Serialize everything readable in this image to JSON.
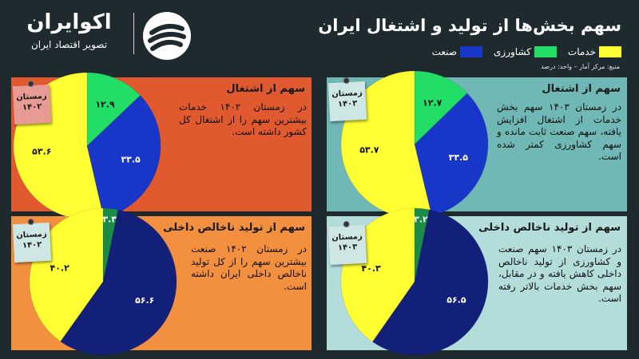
{
  "brand": {
    "name": "اکوایران",
    "tagline": "تصویر اقتصاد ایران"
  },
  "title": "سهم بخش‌ها از تولید و اشتغال ایران",
  "legend": [
    {
      "label": "خدمات",
      "color": "#ffff33"
    },
    {
      "label": "کشاورزی",
      "color": "#22dd66"
    },
    {
      "label": "صنعت",
      "color": "#1836c8"
    }
  ],
  "source": "منبع: مرکز آمار – واحد: درصد",
  "panels": {
    "tl": {
      "title": "سهم از اشتغال",
      "tag_season": "زمستان",
      "tag_year": "۱۴۰۲",
      "text": "در زمستان ۱۴۰۲ خدمات بیشترین سهم را از اشتغال کل کشور داشته است."
    },
    "tr": {
      "title": "سهم از اشتغال",
      "tag_season": "زمستان",
      "tag_year": "۱۴۰۳",
      "text": "در زمستان ۱۴۰۳ سهم بخش خدمات از اشتغال افزایش یافته، سهم صنعت ثابت مانده و سهم کشاورزی کمتر شده است."
    },
    "bl": {
      "title": "سهم از تولید ناخالص داخلی",
      "tag_season": "زمستان",
      "tag_year": "۱۴۰۲",
      "text": "در زمستان ۱۴۰۲ صنعت بیشترین سهم را از کل تولید ناخالص داخلی ایران داشته است."
    },
    "br": {
      "title": "سهم از تولید ناخالص داخلی",
      "tag_season": "زمستان",
      "tag_year": "۱۴۰۳",
      "text": "در زمستان ۱۴۰۳ سهم صنعت و کشاورزی از تولید ناخالص داخلی کاهش یافته و در مقابل، سهم بخش خدمات بالاتر رفته است."
    }
  },
  "chart_data": [
    {
      "type": "pie",
      "title": "سهم از اشتغال",
      "categories": [
        "کشاورزی",
        "صنعت",
        "خدمات"
      ],
      "values": [
        12.9,
        33.5,
        53.6
      ],
      "labels": [
        "۱۲.۹",
        "۳۳.۵",
        "۵۳.۶"
      ],
      "colors": [
        "#22dd66",
        "#1836c8",
        "#ffff33"
      ]
    },
    {
      "type": "pie",
      "title": "سهم از اشتغال",
      "categories": [
        "کشاورزی",
        "صنعت",
        "خدمات"
      ],
      "values": [
        12.7,
        33.5,
        53.7
      ],
      "labels": [
        "۱۲.۷",
        "۳۳.۵",
        "۵۳.۷"
      ],
      "colors": [
        "#22dd66",
        "#1836c8",
        "#ffff33"
      ]
    },
    {
      "type": "pie",
      "title": "سهم از تولید ناخالص داخلی",
      "categories": [
        "کشاورزی",
        "صنعت",
        "خدمات"
      ],
      "values": [
        3.3,
        56.6,
        40.2
      ],
      "labels": [
        "۳.۳",
        "۵۶.۶",
        "۴۰.۲"
      ],
      "colors": [
        "#1a8c47",
        "#12207a",
        "#ffff33"
      ]
    },
    {
      "type": "pie",
      "title": "سهم از تولید ناخالص داخلی",
      "categories": [
        "کشاورزی",
        "صنعت",
        "خدمات"
      ],
      "values": [
        3.2,
        56.5,
        40.3
      ],
      "labels": [
        "۳.۲",
        "۵۶.۵",
        "۴۰.۳"
      ],
      "colors": [
        "#1a8c47",
        "#12207a",
        "#ffff33"
      ]
    }
  ]
}
